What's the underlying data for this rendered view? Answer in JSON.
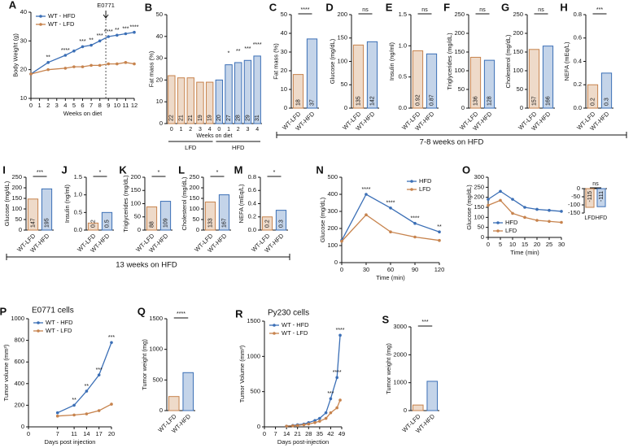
{
  "chart_data": [
    {
      "panel": "A",
      "type": "line",
      "ylabel": "Body Weight (g)",
      "xlabel": "Weeks on diet",
      "x": [
        0,
        2,
        4,
        5,
        6,
        7,
        8,
        9,
        10,
        11,
        12
      ],
      "xlim": [
        0,
        12
      ],
      "xticks": [
        0,
        1,
        2,
        3,
        4,
        5,
        6,
        7,
        8,
        9,
        10,
        11,
        12
      ],
      "ylim": [
        10,
        40
      ],
      "yticks": [
        10,
        20,
        30,
        40
      ],
      "legend": "upper left",
      "annotation": {
        "text": "E0771",
        "x": 8.7
      },
      "sig": [
        null,
        "**",
        "****",
        null,
        "***",
        "**",
        "***",
        "****",
        "**",
        "***",
        "****"
      ],
      "series": [
        {
          "name": "WT - HFD",
          "color": "#3b6fb6",
          "values": [
            18.5,
            22.5,
            25,
            26.5,
            28,
            28.5,
            30,
            31.5,
            32,
            32.5,
            33
          ]
        },
        {
          "name": "WT - LFD",
          "color": "#c7834d",
          "values": [
            18.5,
            20,
            20.5,
            21,
            21,
            21.5,
            21.5,
            22,
            22,
            22.5,
            22
          ]
        }
      ]
    },
    {
      "panel": "B",
      "type": "grouped_bar",
      "ylabel": "Fat mass (%)",
      "xlabel": "Weeks on diet",
      "categories": [
        "0",
        "1",
        "2",
        "3",
        "4"
      ],
      "ylim": [
        0,
        50
      ],
      "yticks": [
        0,
        10,
        20,
        30,
        40,
        50
      ],
      "data_labels": true,
      "series": [
        {
          "name": "LFD",
          "color": "#c7834d",
          "values": [
            22,
            21,
            21,
            19,
            19
          ]
        },
        {
          "name": "HFD",
          "color": "#3b6fb6",
          "values": [
            20,
            27,
            28,
            29,
            31
          ],
          "sig": [
            null,
            "*",
            "**",
            "***",
            "****"
          ]
        }
      ]
    },
    {
      "panel": "C",
      "type": "bar",
      "ylabel": "Fat mass (%)",
      "categories": [
        "WT-LFD",
        "WT-HFD"
      ],
      "colors": [
        "#c7834d",
        "#3b6fb6"
      ],
      "values": [
        18,
        37
      ],
      "ylim": [
        0,
        50
      ],
      "yticks": [
        0,
        10,
        20,
        30,
        40,
        50
      ],
      "sig": "****",
      "data_labels": true
    },
    {
      "panel": "D",
      "type": "bar",
      "ylabel": "Glucose (mg/dL)",
      "categories": [
        "WT-LFD",
        "WT-HFD"
      ],
      "colors": [
        "#c7834d",
        "#3b6fb6"
      ],
      "values": [
        135,
        142
      ],
      "ylim": [
        0,
        200
      ],
      "yticks": [
        0,
        50,
        100,
        150,
        200
      ],
      "sig": "ns",
      "data_labels": true
    },
    {
      "panel": "E",
      "type": "bar",
      "ylabel": "Insulin (ng/ml)",
      "categories": [
        "WT-LFD",
        "WT-HFD"
      ],
      "colors": [
        "#c7834d",
        "#3b6fb6"
      ],
      "values": [
        0.92,
        0.87
      ],
      "ylim": [
        0,
        1.5
      ],
      "yticks": [
        {
          "value": 0,
          "label": "0.0"
        },
        0.5,
        {
          "value": 1,
          "label": "1.0"
        },
        1.5
      ],
      "sig": "ns",
      "data_labels": true
    },
    {
      "panel": "F",
      "type": "bar",
      "ylabel": "Triglycerides (mg/dL)",
      "categories": [
        "WT-LFD",
        "WT-HFD"
      ],
      "colors": [
        "#c7834d",
        "#3b6fb6"
      ],
      "values": [
        136,
        128
      ],
      "ylim": [
        0,
        250
      ],
      "yticks": [
        0,
        50,
        100,
        150,
        200,
        250
      ],
      "sig": "ns",
      "data_labels": true
    },
    {
      "panel": "G",
      "type": "bar",
      "ylabel": "Cholesterol (mg/dL)",
      "categories": [
        "WT-LFD",
        "WT-HFD"
      ],
      "colors": [
        "#c7834d",
        "#3b6fb6"
      ],
      "values": [
        157,
        166
      ],
      "ylim": [
        0,
        250
      ],
      "yticks": [
        0,
        50,
        100,
        150,
        200,
        250
      ],
      "sig": "ns",
      "data_labels": true
    },
    {
      "panel": "H",
      "type": "bar",
      "ylabel": "NEFA (mEq/L)",
      "categories": [
        "WT-LFD",
        "WT-HFD"
      ],
      "colors": [
        "#c7834d",
        "#3b6fb6"
      ],
      "values": [
        0.2,
        0.3
      ],
      "ylim": [
        0,
        0.8
      ],
      "yticks": [
        {
          "value": 0,
          "label": "0.0"
        },
        0.2,
        0.4,
        0.6,
        0.8
      ],
      "sig": "***",
      "data_labels": true
    },
    {
      "panel": "I",
      "type": "bar",
      "ylabel": "Glucose (mg/dL)",
      "categories": [
        "WT-LFD",
        "WT-HFD"
      ],
      "colors": [
        "#c7834d",
        "#3b6fb6"
      ],
      "values": [
        147,
        195
      ],
      "ylim": [
        0,
        250
      ],
      "yticks": [
        0,
        50,
        100,
        150,
        200,
        250
      ],
      "sig": "***",
      "data_labels": true
    },
    {
      "panel": "J",
      "type": "bar",
      "ylabel": "Insulin (ng/ml)",
      "categories": [
        "WT-LFD",
        "WT-HFD"
      ],
      "colors": [
        "#c7834d",
        "#3b6fb6"
      ],
      "values": [
        0.2,
        0.5
      ],
      "ylim": [
        0,
        1.5
      ],
      "yticks": [
        {
          "value": 0,
          "label": "0.0"
        },
        0.5,
        {
          "value": 1,
          "label": "1.0"
        },
        1.5
      ],
      "sig": "*",
      "data_labels": true
    },
    {
      "panel": "K",
      "type": "bar",
      "ylabel": "Triglycerides (mg/dL)",
      "categories": [
        "WT-LFD",
        "WT-HFD"
      ],
      "colors": [
        "#c7834d",
        "#3b6fb6"
      ],
      "values": [
        88,
        109
      ],
      "ylim": [
        0,
        200
      ],
      "yticks": [
        0,
        50,
        100,
        150,
        200
      ],
      "sig": "*",
      "data_labels": true
    },
    {
      "panel": "L",
      "type": "bar",
      "ylabel": "Cholesterol (mg/dL)",
      "categories": [
        "WT-LFD",
        "WT-HFD"
      ],
      "colors": [
        "#c7834d",
        "#3b6fb6"
      ],
      "values": [
        133,
        167
      ],
      "ylim": [
        0,
        250
      ],
      "yticks": [
        0,
        50,
        100,
        150,
        200,
        250
      ],
      "sig": "*",
      "data_labels": true
    },
    {
      "panel": "M",
      "type": "bar",
      "ylabel": "NEFA (mEq/L)",
      "categories": [
        "WT-LFD",
        "WT-HFD"
      ],
      "colors": [
        "#c7834d",
        "#3b6fb6"
      ],
      "values": [
        0.2,
        0.3
      ],
      "ylim": [
        0,
        0.8
      ],
      "yticks": [
        {
          "value": 0,
          "label": "0.0"
        },
        0.2,
        0.4,
        0.6,
        0.8
      ],
      "sig": "*",
      "data_labels": true
    },
    {
      "panel": "N",
      "type": "line",
      "ylabel": "Glucose (mg/dL)",
      "xlabel": "Time (min)",
      "x": [
        0,
        30,
        60,
        90,
        120
      ],
      "xlim": [
        0,
        120
      ],
      "xticks": [
        0,
        30,
        60,
        90,
        120
      ],
      "ylim": [
        0,
        500
      ],
      "yticks": [
        0,
        100,
        200,
        300,
        400,
        500
      ],
      "legend": "upper right",
      "sig": [
        null,
        "****",
        "****",
        "****",
        "**"
      ],
      "series": [
        {
          "name": "HFD",
          "color": "#3b6fb6",
          "values": [
            130,
            400,
            320,
            230,
            180
          ]
        },
        {
          "name": "LFD",
          "color": "#c7834d",
          "values": [
            125,
            280,
            180,
            150,
            130
          ]
        }
      ]
    },
    {
      "panel": "O",
      "type": "line",
      "ylabel": "Glucose (mg/dL)",
      "xlabel": "Time (min)",
      "x": [
        0,
        5,
        10,
        15,
        20,
        25,
        30
      ],
      "xlim": [
        0,
        30
      ],
      "xticks": [
        0,
        5,
        10,
        15,
        20,
        25,
        30
      ],
      "ylim": [
        0,
        300
      ],
      "yticks": [
        0,
        50,
        100,
        150,
        200,
        250,
        300
      ],
      "legend": "lower left",
      "series": [
        {
          "name": "HFD",
          "color": "#3b6fb6",
          "values": [
            190,
            230,
            190,
            150,
            140,
            135,
            130
          ]
        },
        {
          "name": "LFD",
          "color": "#c7834d",
          "values": [
            160,
            185,
            120,
            100,
            85,
            80,
            75
          ]
        }
      ],
      "inset": {
        "type": "bar",
        "categories": [
          "LFD",
          "HFD"
        ],
        "colors": [
          "#c7834d",
          "#3b6fb6"
        ],
        "values": [
          -115,
          -111
        ],
        "ylim": [
          -150,
          0
        ],
        "yticks": [
          -150,
          -100,
          -50,
          0
        ],
        "sig": "ns",
        "data_labels": true
      }
    },
    {
      "panel": "P",
      "type": "line",
      "title": "E0771 cells",
      "ylabel": "Tumor volume (mm³)",
      "xlabel": "Days post injection",
      "x": [
        7,
        11,
        14,
        17,
        20
      ],
      "xlim": [
        0,
        20
      ],
      "xticks": [
        0,
        7,
        11,
        14,
        17,
        20
      ],
      "ylim": [
        0,
        1000
      ],
      "yticks": [
        0,
        200,
        400,
        600,
        800,
        1000
      ],
      "legend": "upper left",
      "sig": [
        null,
        "**",
        "**",
        "***",
        "***"
      ],
      "series": [
        {
          "name": "WT - HFD",
          "color": "#3b6fb6",
          "values": [
            130,
            200,
            330,
            480,
            780
          ]
        },
        {
          "name": "WT - LFD",
          "color": "#c7834d",
          "values": [
            100,
            110,
            120,
            150,
            210
          ]
        }
      ]
    },
    {
      "panel": "Q",
      "type": "bar",
      "ylabel": "Tumor weight (mg)",
      "categories": [
        "WT-LFD",
        "WT-HFD"
      ],
      "colors": [
        "#c7834d",
        "#3b6fb6"
      ],
      "values": [
        230,
        620
      ],
      "ylim": [
        0,
        1500
      ],
      "yticks": [
        0,
        500,
        1000,
        1500
      ],
      "sig": "****",
      "data_labels": false
    },
    {
      "panel": "R",
      "type": "line",
      "title": "Py230 cells",
      "ylabel": "Tumor Volume (mm³)",
      "xlabel": "Days post-injection",
      "x": [
        14,
        18,
        21,
        25,
        28,
        32,
        35,
        39,
        42,
        46,
        48
      ],
      "xlim": [
        0,
        49
      ],
      "xticks": [
        0,
        7,
        14,
        21,
        28,
        35,
        42,
        49
      ],
      "ylim": [
        0,
        1500
      ],
      "yticks": [
        0,
        500,
        1000,
        1500
      ],
      "legend": "upper left",
      "sig": [
        null,
        null,
        null,
        null,
        null,
        null,
        null,
        null,
        "***",
        "****",
        "****"
      ],
      "series": [
        {
          "name": "WT - HFD",
          "color": "#3b6fb6",
          "values": [
            10,
            20,
            30,
            40,
            60,
            90,
            120,
            200,
            400,
            700,
            1300
          ]
        },
        {
          "name": "WT - LFD",
          "color": "#c7834d",
          "values": [
            10,
            15,
            20,
            30,
            40,
            60,
            80,
            120,
            200,
            270,
            380
          ]
        }
      ]
    },
    {
      "panel": "S",
      "type": "bar",
      "ylabel": "Tumor weight (mg)",
      "categories": [
        "WT-LFD",
        "WT-HFD"
      ],
      "colors": [
        "#c7834d",
        "#3b6fb6"
      ],
      "values": [
        200,
        1050
      ],
      "ylim": [
        0,
        3000
      ],
      "yticks": [
        0,
        1000,
        2000,
        3000
      ],
      "sig": "***",
      "data_labels": false
    }
  ],
  "annotations": [
    {
      "text": "7-8 weeks on HFD"
    },
    {
      "text": "13 weeks on HFD"
    }
  ]
}
